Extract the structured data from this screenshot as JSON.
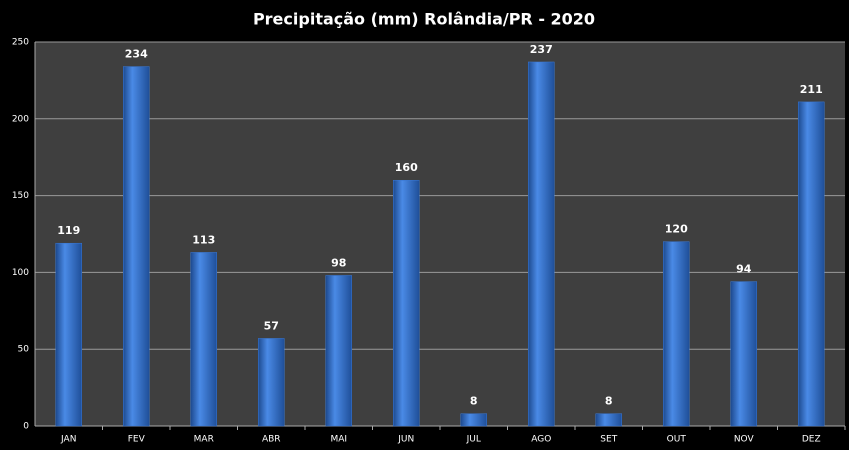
{
  "chart_data": {
    "type": "bar",
    "title": "Precipitação (mm) Rolândia/PR - 2020",
    "categories": [
      "JAN",
      "FEV",
      "MAR",
      "ABR",
      "MAI",
      "JUN",
      "JUL",
      "AGO",
      "SET",
      "OUT",
      "NOV",
      "DEZ"
    ],
    "values": [
      119,
      234,
      113,
      57,
      98,
      160,
      8,
      237,
      8,
      120,
      94,
      211
    ],
    "color": "#3a78d4",
    "ylim": [
      0,
      250
    ],
    "yticks": [
      0,
      50,
      100,
      150,
      200,
      250
    ],
    "grid": true
  }
}
